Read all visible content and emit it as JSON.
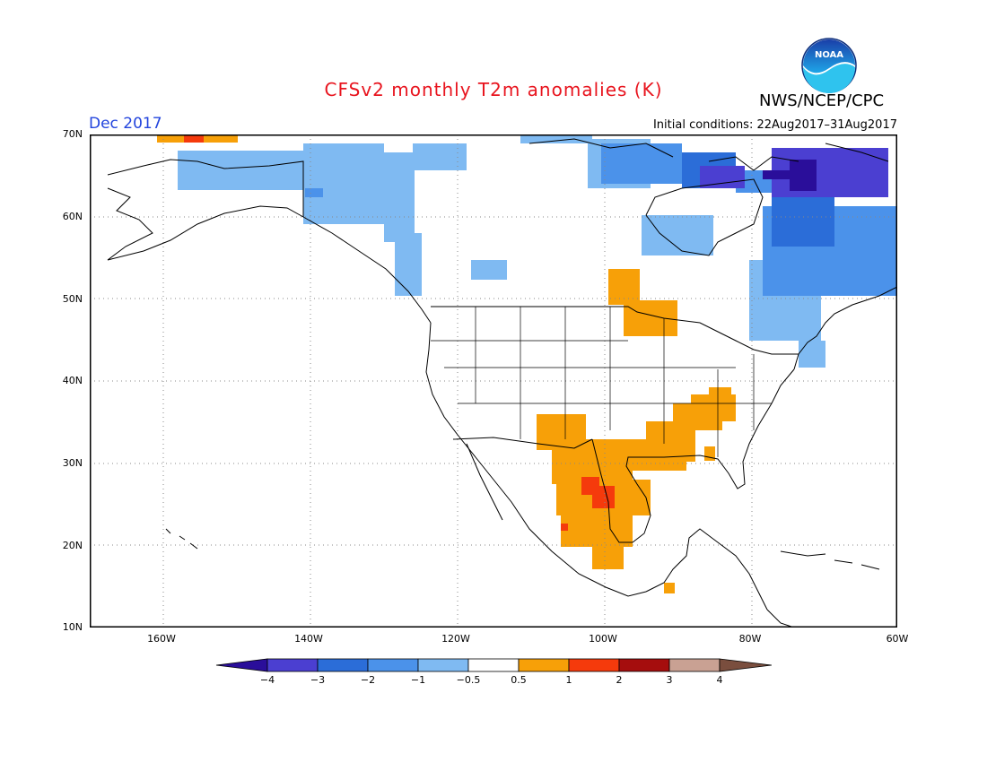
{
  "title": "CFSv2 monthly T2m anomalies (K)",
  "period": "Dec 2017",
  "agency": "NWS/NCEP/CPC",
  "logo_text": "NOAA",
  "initial_conditions": "Initial conditions: 22Aug2017–31Aug2017",
  "lat_ticks": [
    "70N",
    "60N",
    "50N",
    "40N",
    "30N",
    "20N",
    "10N"
  ],
  "lon_ticks": [
    "160W",
    "140W",
    "120W",
    "100W",
    "80W",
    "60W"
  ],
  "colorbar": {
    "labels": [
      "−4",
      "−3",
      "−2",
      "−1",
      "−0.5",
      "0.5",
      "1",
      "2",
      "3",
      "4"
    ],
    "colors": [
      "#2a0e9a",
      "#4b3fd1",
      "#2b6dd8",
      "#4b92ea",
      "#7fbaf2",
      "#ffffff",
      "#f7a008",
      "#f53a0c",
      "#a50d0d",
      "#c9a193",
      "#7a4e3e"
    ]
  },
  "colors": {
    "title": "#e8141e",
    "period": "#2244dd",
    "land_outline": "#000000",
    "grid": "#888888"
  }
}
